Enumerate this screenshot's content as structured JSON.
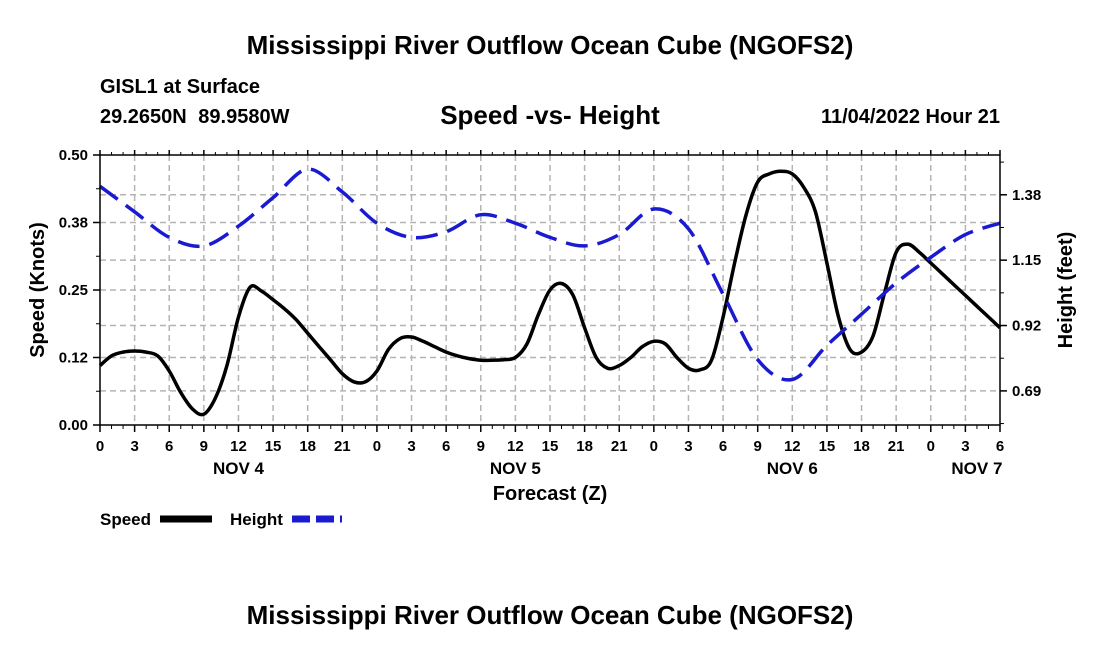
{
  "header": {
    "title": "Mississippi River Outflow Ocean Cube (NGOFS2)",
    "station": "GISL1 at Surface",
    "coordinates": "29.2650N  89.9580W",
    "subtitle": "Speed -vs- Height",
    "datetime": "11/04/2022 Hour 21"
  },
  "footer": {
    "title": "Mississippi River Outflow Ocean Cube (NGOFS2)"
  },
  "chart_data": {
    "type": "line",
    "title": "Speed -vs- Height",
    "xlabel": "Forecast (Z)",
    "ylabel": "Speed (Knots)",
    "y2label": "Height (feet)",
    "xlim": [
      0,
      78
    ],
    "ylim": [
      0,
      0.5
    ],
    "y2lim": [
      0.57,
      1.52
    ],
    "x_ticks": [
      0,
      3,
      6,
      9,
      12,
      15,
      18,
      21,
      24,
      27,
      30,
      33,
      36,
      39,
      42,
      45,
      48,
      51,
      54,
      57,
      60,
      63,
      66,
      69,
      72,
      75,
      78
    ],
    "x_tick_labels": [
      "0",
      "3",
      "6",
      "9",
      "12",
      "15",
      "18",
      "21",
      "0",
      "3",
      "6",
      "9",
      "12",
      "15",
      "18",
      "21",
      "0",
      "3",
      "6",
      "9",
      "12",
      "15",
      "18",
      "21",
      "0",
      "3",
      "6"
    ],
    "date_labels": [
      {
        "x": 12,
        "label": "NOV 4"
      },
      {
        "x": 36,
        "label": "NOV 5"
      },
      {
        "x": 60,
        "label": "NOV 6"
      },
      {
        "x": 76,
        "label": "NOV 7"
      }
    ],
    "y_ticks": [
      0,
      0.125,
      0.25,
      0.375,
      0.5
    ],
    "y_tick_labels": [
      "0.00",
      "0.12",
      "0.25",
      "0.38",
      "0.50"
    ],
    "y2_ticks": [
      0.69,
      0.92,
      1.15,
      1.38
    ],
    "y2_tick_labels": [
      "0.69",
      "0.92",
      "1.15",
      "1.38"
    ],
    "grid": true,
    "legend": {
      "position": "bottom-left",
      "items": [
        {
          "label": "Speed",
          "color": "#000000",
          "dash": "solid"
        },
        {
          "label": "Height",
          "color": "#1a1ad0",
          "dash": "dashed"
        }
      ]
    },
    "series": [
      {
        "name": "Speed",
        "axis": "left",
        "color": "#000000",
        "x": [
          0,
          1,
          2,
          3,
          4,
          5,
          6,
          7,
          8,
          9,
          10,
          11,
          12,
          13,
          14,
          15,
          16,
          17,
          18,
          19,
          20,
          21,
          22,
          23,
          24,
          25,
          26,
          27,
          28,
          29,
          30,
          31,
          32,
          33,
          34,
          35,
          36,
          37,
          38,
          39,
          40,
          41,
          42,
          43,
          44,
          45,
          46,
          47,
          48,
          49,
          50,
          51,
          52,
          53,
          54,
          55,
          56,
          57,
          58,
          59,
          60,
          61,
          62,
          63,
          64,
          65,
          66,
          67,
          68,
          69,
          70,
          71,
          72,
          73,
          74,
          75,
          76,
          77,
          78
        ],
        "values": [
          0.11,
          0.128,
          0.135,
          0.137,
          0.135,
          0.128,
          0.1,
          0.06,
          0.03,
          0.02,
          0.05,
          0.11,
          0.2,
          0.255,
          0.248,
          0.232,
          0.215,
          0.195,
          0.17,
          0.145,
          0.12,
          0.095,
          0.08,
          0.08,
          0.1,
          0.14,
          0.16,
          0.163,
          0.155,
          0.145,
          0.135,
          0.128,
          0.123,
          0.12,
          0.12,
          0.121,
          0.125,
          0.15,
          0.205,
          0.25,
          0.262,
          0.24,
          0.18,
          0.125,
          0.105,
          0.11,
          0.125,
          0.145,
          0.155,
          0.15,
          0.125,
          0.105,
          0.102,
          0.12,
          0.2,
          0.3,
          0.39,
          0.45,
          0.465,
          0.47,
          0.465,
          0.44,
          0.395,
          0.3,
          0.2,
          0.14,
          0.135,
          0.165,
          0.245,
          0.32,
          0.335,
          0.32,
          0.3,
          0.28,
          0.26,
          0.24,
          0.22,
          0.2,
          0.18
        ]
      },
      {
        "name": "Height",
        "axis": "right",
        "color": "#1a1ad0",
        "x": [
          0,
          3,
          6,
          9,
          12,
          15,
          18,
          21,
          24,
          27,
          30,
          33,
          36,
          39,
          42,
          45,
          48,
          51,
          54,
          57,
          60,
          63,
          66,
          69,
          72,
          75,
          78
        ],
        "values": [
          1.41,
          1.32,
          1.23,
          1.2,
          1.27,
          1.37,
          1.47,
          1.39,
          1.28,
          1.23,
          1.25,
          1.31,
          1.28,
          1.23,
          1.2,
          1.24,
          1.33,
          1.26,
          1.03,
          0.8,
          0.73,
          0.85,
          0.96,
          1.07,
          1.16,
          1.24,
          1.28
        ]
      }
    ]
  }
}
